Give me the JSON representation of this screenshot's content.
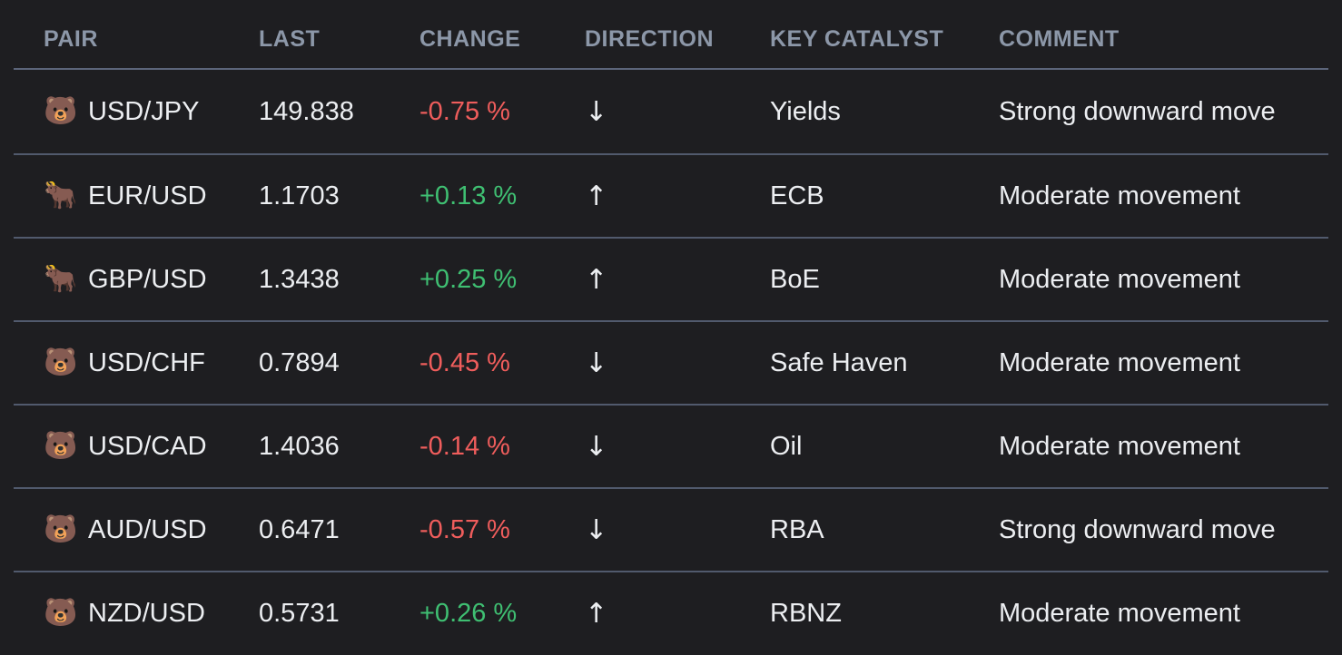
{
  "table": {
    "columns": [
      {
        "label": "PAIR"
      },
      {
        "label": "LAST"
      },
      {
        "label": "CHANGE"
      },
      {
        "label": "DIRECTION"
      },
      {
        "label": "KEY CATALYST"
      },
      {
        "label": "COMMENT"
      }
    ],
    "rows": [
      {
        "sentiment": "bear",
        "sentiment_icon": "🐻",
        "pair": "USD/JPY",
        "last": "149.838",
        "change": "-0.75 %",
        "trend": "down",
        "direction_arrow": "↓",
        "catalyst": "Yields",
        "comment": "Strong downward move"
      },
      {
        "sentiment": "bull",
        "sentiment_icon": "🐂",
        "pair": "EUR/USD",
        "last": "1.1703",
        "change": "+0.13 %",
        "trend": "up",
        "direction_arrow": "↑",
        "catalyst": "ECB",
        "comment": "Moderate movement"
      },
      {
        "sentiment": "bull",
        "sentiment_icon": "🐂",
        "pair": "GBP/USD",
        "last": "1.3438",
        "change": "+0.25 %",
        "trend": "up",
        "direction_arrow": "↑",
        "catalyst": "BoE",
        "comment": "Moderate movement"
      },
      {
        "sentiment": "bear",
        "sentiment_icon": "🐻",
        "pair": "USD/CHF",
        "last": "0.7894",
        "change": "-0.45 %",
        "trend": "down",
        "direction_arrow": "↓",
        "catalyst": "Safe Haven",
        "comment": "Moderate movement"
      },
      {
        "sentiment": "bear",
        "sentiment_icon": "🐻",
        "pair": "USD/CAD",
        "last": "1.4036",
        "change": "-0.14 %",
        "trend": "down",
        "direction_arrow": "↓",
        "catalyst": "Oil",
        "comment": "Moderate movement"
      },
      {
        "sentiment": "bear",
        "sentiment_icon": "🐻",
        "pair": "AUD/USD",
        "last": "0.6471",
        "change": "-0.57 %",
        "trend": "down",
        "direction_arrow": "↓",
        "catalyst": "RBA",
        "comment": "Strong downward move"
      },
      {
        "sentiment": "bear",
        "sentiment_icon": "🐻",
        "pair": "NZD/USD",
        "last": "0.5731",
        "change": "+0.26 %",
        "trend": "up",
        "direction_arrow": "↑",
        "catalyst": "RBNZ",
        "comment": "Moderate movement"
      }
    ]
  },
  "colors": {
    "background": "#1e1e21",
    "header_text": "#8c97a8",
    "body_text": "#eceef1",
    "positive": "#3fbf72",
    "negative": "#ef5d5c",
    "divider_header": "#5c657a",
    "divider_row": "#515a6d"
  }
}
